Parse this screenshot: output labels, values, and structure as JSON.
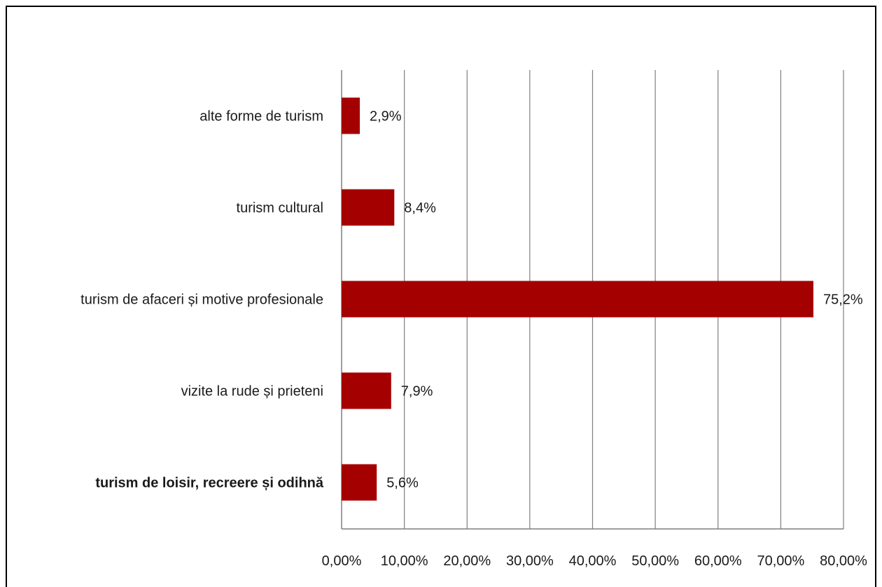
{
  "chart_data": {
    "type": "bar",
    "orientation": "horizontal",
    "categories": [
      "alte forme de turism",
      "turism cultural",
      "turism de afaceri și motive profesionale",
      "vizite la rude și prieteni",
      "turism de loisir, recreere și odihnă"
    ],
    "values": [
      2.9,
      8.4,
      75.2,
      7.9,
      5.6
    ],
    "data_labels": [
      "2,9%",
      "8,4%",
      "75,2%",
      "7,9%",
      "5,6%"
    ],
    "bold_categories": [
      "turism de loisir, recreere și odihnă"
    ],
    "xlim": [
      0,
      80
    ],
    "x_ticks": [
      0,
      10,
      20,
      30,
      40,
      50,
      60,
      70,
      80
    ],
    "x_tick_labels": [
      "0,00%",
      "10,00%",
      "20,00%",
      "30,00%",
      "40,00%",
      "50,00%",
      "60,00%",
      "70,00%",
      "80,00%"
    ],
    "grid": "vertical",
    "legend": "none",
    "bar_color": "#a50000",
    "grid_color": "#7f7f7f"
  }
}
